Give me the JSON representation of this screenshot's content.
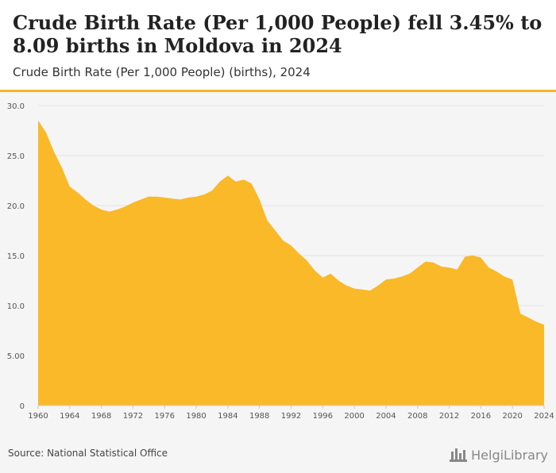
{
  "header": {
    "title": "Crude Birth Rate (Per 1,000 People) fell 3.45% to 8.09 births in Moldova in 2024",
    "subtitle": "Crude Birth Rate (Per 1,000 People) (births), 2024"
  },
  "footer": {
    "source": "Source: National Statistical Office",
    "brand": "HelgiLibrary",
    "brand_icon": "library-skyline-icon"
  },
  "colors": {
    "accent": "#f7b421",
    "area_fill": "#f9b928",
    "plot_background": "#f5f5f5",
    "gridline": "#e2e2e2"
  },
  "chart_data": {
    "type": "area",
    "title": "Crude Birth Rate (Per 1,000 People) fell 3.45% to 8.09 births in Moldova in 2024",
    "subtitle": "Crude Birth Rate (Per 1,000 People) (births), 2024",
    "xlabel": "",
    "ylabel": "",
    "grid": true,
    "xlim": [
      1960,
      2024
    ],
    "ylim": [
      0,
      30
    ],
    "x_ticks": [
      1960,
      1964,
      1968,
      1972,
      1976,
      1980,
      1984,
      1988,
      1992,
      1996,
      2000,
      2004,
      2008,
      2012,
      2016,
      2020,
      2024
    ],
    "y_ticks": [
      0,
      5,
      10,
      15,
      20,
      25,
      30
    ],
    "y_tick_labels": [
      "0",
      "5.00",
      "10.0",
      "15.0",
      "20.0",
      "25.0",
      "30.0"
    ],
    "series": [
      {
        "x": [
          1960,
          1961,
          1962,
          1963,
          1964,
          1965,
          1966,
          1967,
          1968,
          1969,
          1970,
          1971,
          1972,
          1973,
          1974,
          1975,
          1976,
          1977,
          1978,
          1979,
          1980,
          1981,
          1982,
          1983,
          1984,
          1985,
          1986,
          1987,
          1988,
          1989,
          1990,
          1991,
          1992,
          1993,
          1994,
          1995,
          1996,
          1997,
          1998,
          1999,
          2000,
          2001,
          2002,
          2003,
          2004,
          2005,
          2006,
          2007,
          2008,
          2009,
          2010,
          2011,
          2012,
          2013,
          2014,
          2015,
          2016,
          2017,
          2018,
          2019,
          2020,
          2021,
          2022,
          2023,
          2024
        ],
        "values": [
          28.5,
          27.3,
          25.4,
          23.8,
          21.9,
          21.3,
          20.6,
          20.0,
          19.6,
          19.4,
          19.6,
          19.9,
          20.3,
          20.6,
          20.9,
          20.9,
          20.8,
          20.7,
          20.6,
          20.8,
          20.9,
          21.1,
          21.5,
          22.4,
          23.0,
          22.4,
          22.6,
          22.2,
          20.6,
          18.5,
          17.5,
          16.5,
          16.0,
          15.2,
          14.5,
          13.5,
          12.8,
          13.2,
          12.5,
          12.0,
          11.7,
          11.6,
          11.5,
          12.0,
          12.6,
          12.7,
          12.9,
          13.2,
          13.8,
          14.4,
          14.3,
          13.9,
          13.8,
          13.6,
          14.9,
          15.0,
          14.8,
          13.8,
          13.4,
          12.9,
          12.6,
          9.2,
          8.8,
          8.4,
          8.09
        ]
      }
    ]
  }
}
